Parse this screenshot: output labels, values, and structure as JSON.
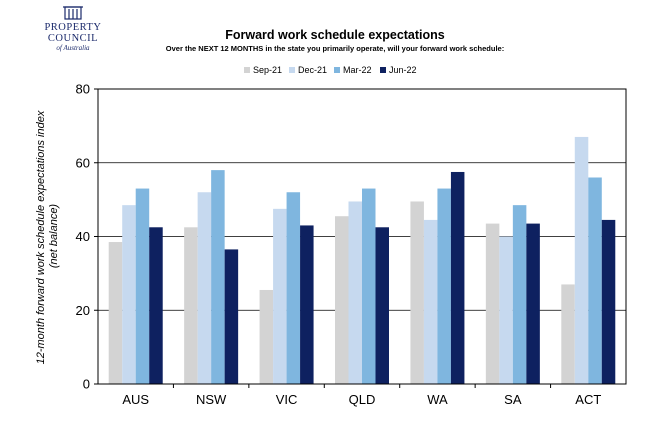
{
  "logo": {
    "line1": "PROPERTY",
    "line2": "COUNCIL",
    "line3": "of Australia",
    "color": "#1b2a6b"
  },
  "chart_data": {
    "type": "bar",
    "title": "Forward work schedule expectations",
    "subtitle": "Over the NEXT 12 MONTHS in the state you primarily operate, will your forward work schedule:",
    "ylabel_line1": "12-month forward work schedule expectations index",
    "ylabel_line2": "(net balance)",
    "xlabel": "",
    "categories": [
      "AUS",
      "NSW",
      "VIC",
      "QLD",
      "WA",
      "SA",
      "ACT"
    ],
    "series": [
      {
        "name": "Sep-21",
        "color": "#d3d3d3",
        "values": [
          38.5,
          42.5,
          25.5,
          45.5,
          49.5,
          43.5,
          27
        ]
      },
      {
        "name": "Dec-21",
        "color": "#c6d9ef",
        "values": [
          48.5,
          52,
          47.5,
          49.5,
          44.5,
          40,
          67
        ]
      },
      {
        "name": "Mar-22",
        "color": "#7fb6df",
        "values": [
          53,
          58,
          52,
          53,
          53,
          48.5,
          56
        ]
      },
      {
        "name": "Jun-22",
        "color": "#0e2160",
        "values": [
          42.5,
          36.5,
          43,
          42.5,
          57.5,
          43.5,
          44.5
        ]
      }
    ],
    "yticks": [
      "0",
      "20",
      "40",
      "60",
      "80"
    ],
    "ylim": [
      0,
      80
    ],
    "grid": true,
    "legend_position": "top-center"
  }
}
